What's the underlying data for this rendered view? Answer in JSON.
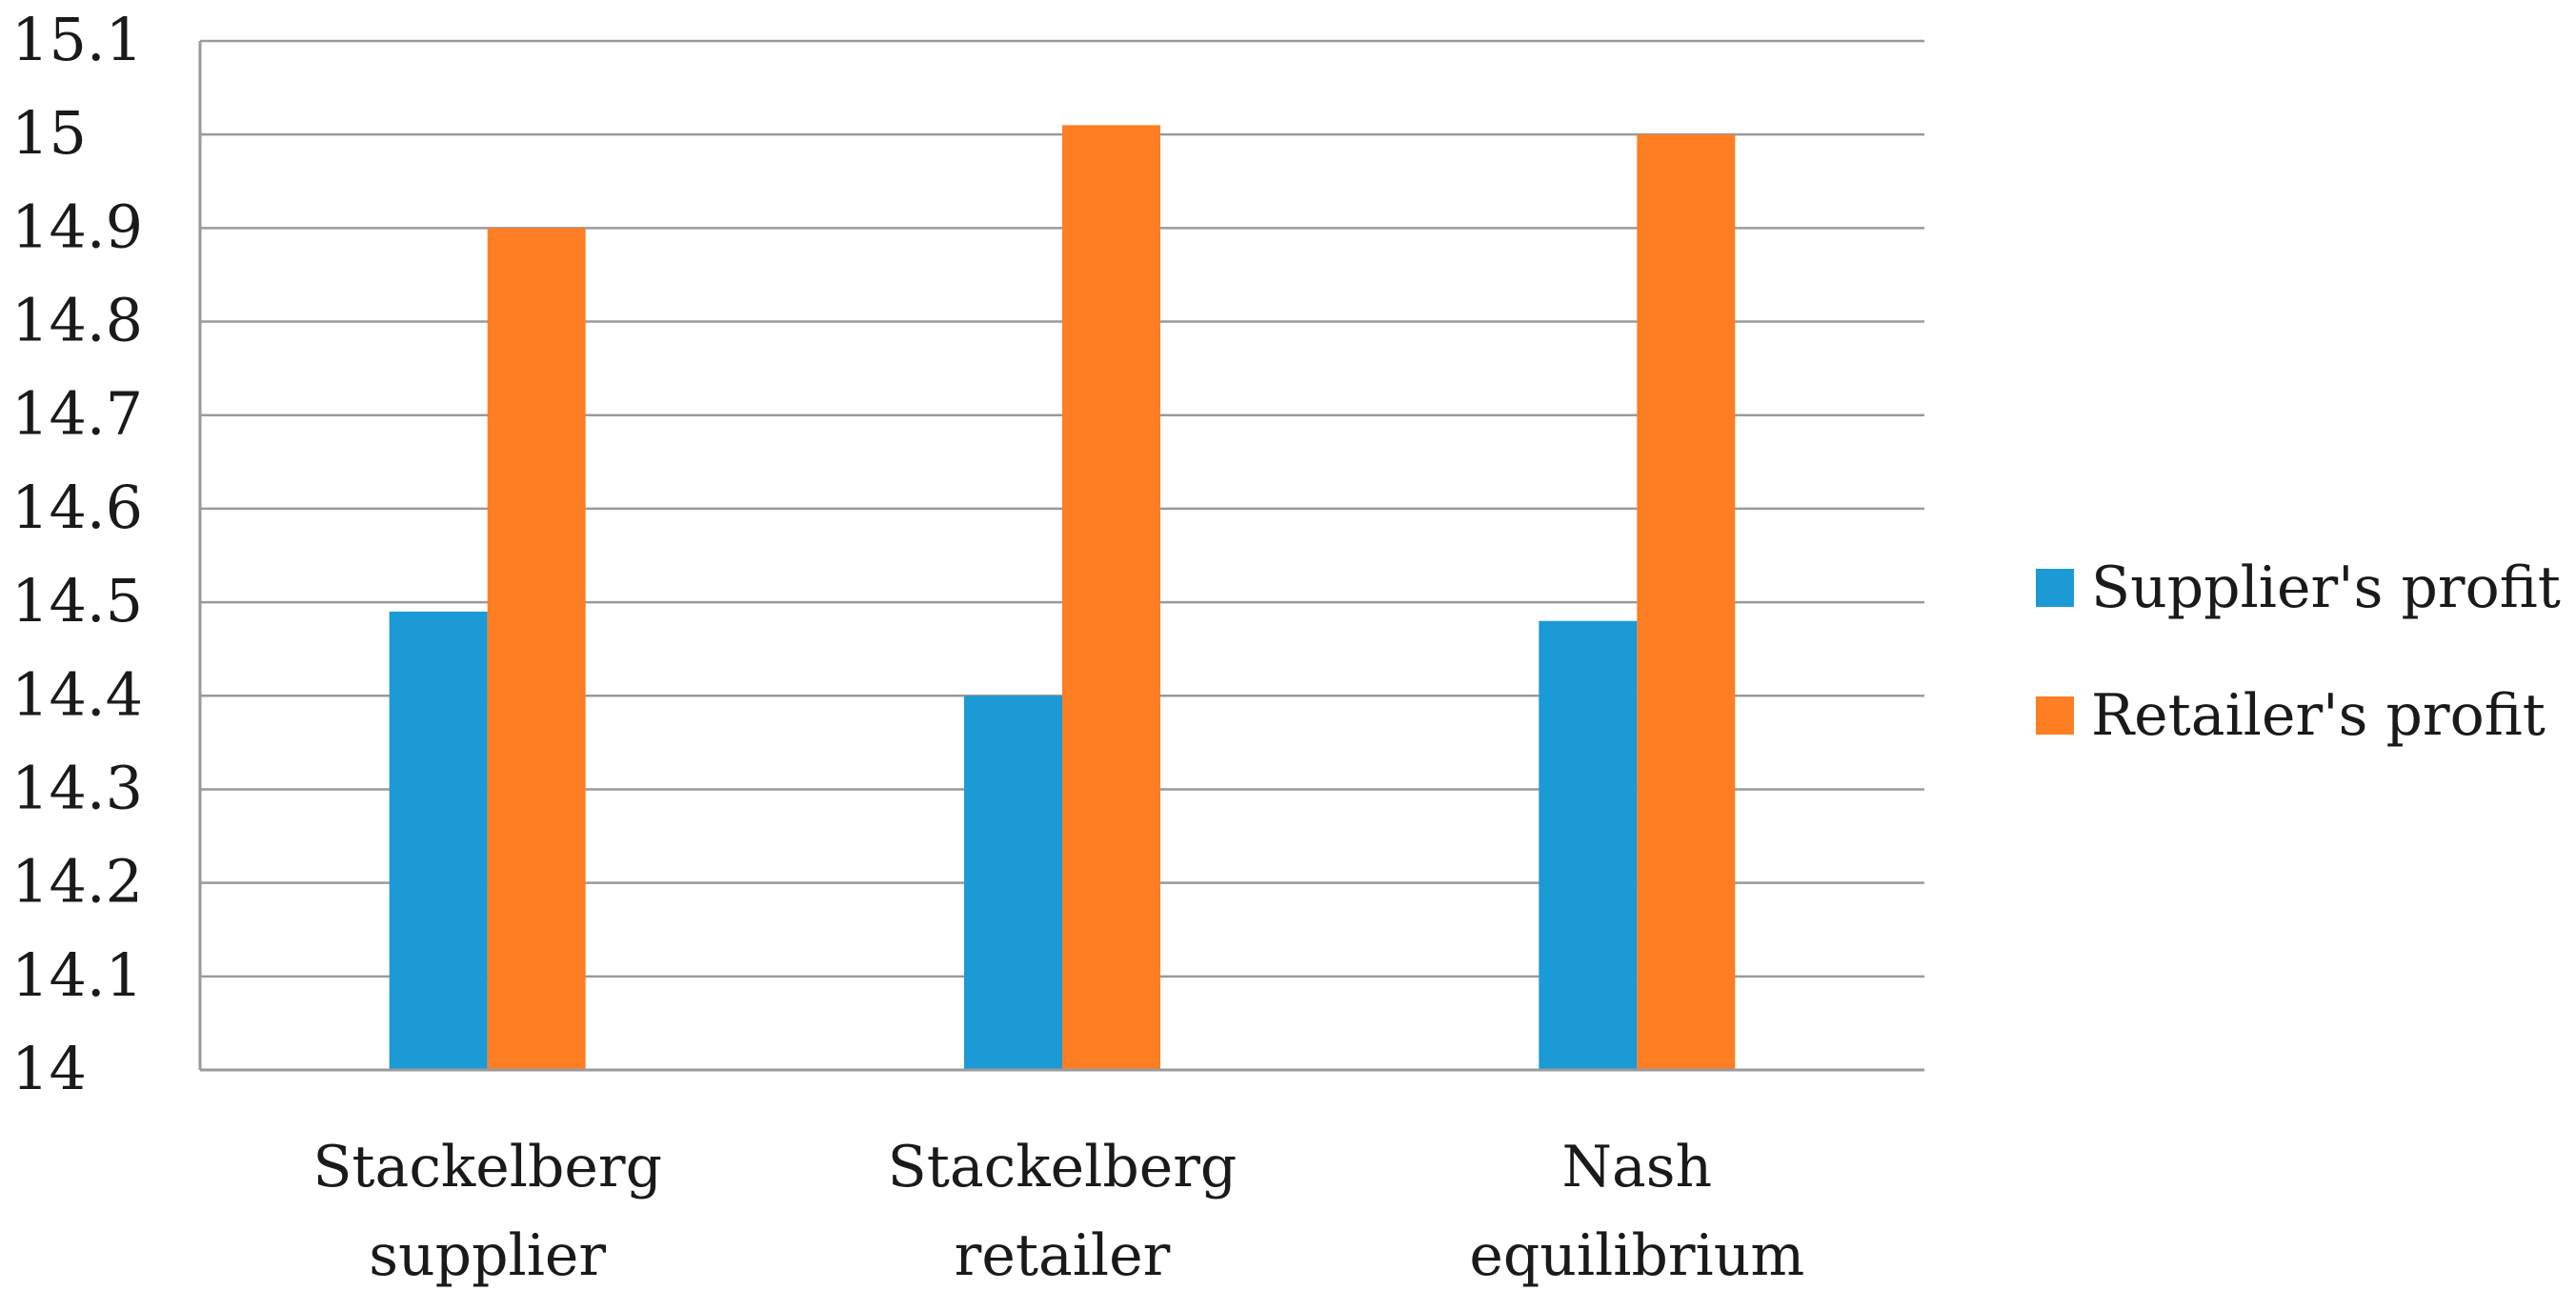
{
  "chart_data": {
    "type": "bar",
    "title": "",
    "xlabel": "",
    "ylabel": "",
    "ylim": [
      14,
      15.1
    ],
    "y_ticks": [
      "14",
      "14.1",
      "14.2",
      "14.3",
      "14.4",
      "14.5",
      "14.6",
      "14.7",
      "14.8",
      "14.9",
      "15",
      "15.1"
    ],
    "categories": [
      [
        "Stackelberg",
        "supplier"
      ],
      [
        "Stackelberg",
        "retailer"
      ],
      [
        "Nash",
        "equilibrium"
      ]
    ],
    "series": [
      {
        "name": "Supplier's profit",
        "color": "#1b9ad6",
        "values": [
          14.49,
          14.4,
          14.48
        ]
      },
      {
        "name": "Retailer's profit",
        "color": "#fd7e23",
        "values": [
          14.9,
          15.01,
          15.0
        ]
      }
    ],
    "grid": true,
    "legend_position": "right"
  }
}
